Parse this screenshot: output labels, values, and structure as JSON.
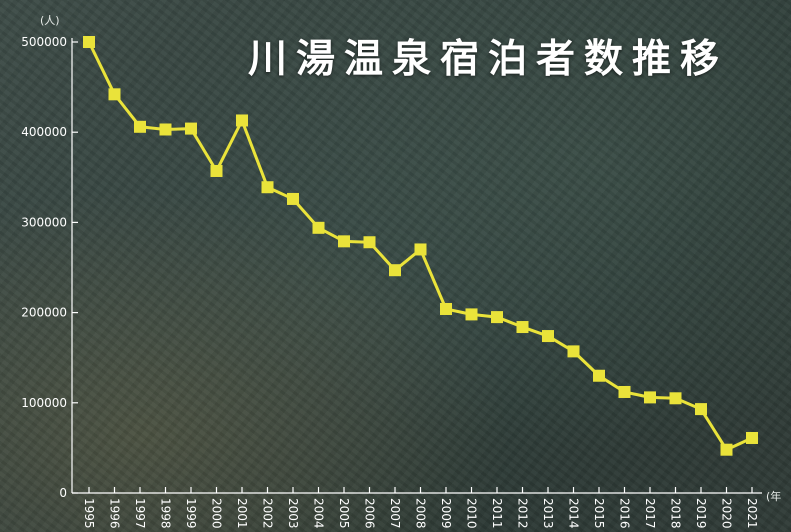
{
  "chart_data": {
    "type": "line",
    "title": "川湯温泉宿泊者数推移",
    "y_unit": "(人)",
    "x_unit": "(年",
    "x": [
      "1995",
      "1996",
      "1997",
      "1998",
      "1999",
      "2000",
      "2001",
      "2002",
      "2003",
      "2004",
      "2005",
      "2006",
      "2007",
      "2008",
      "2009",
      "2010",
      "2011",
      "2012",
      "2013",
      "2014",
      "2015",
      "2016",
      "2017",
      "2018",
      "2019",
      "2020",
      "2021"
    ],
    "series": [
      {
        "values": [
          500000,
          442000,
          406000,
          403000,
          404000,
          357000,
          413000,
          339000,
          326000,
          294000,
          279000,
          278000,
          247000,
          270000,
          204000,
          198000,
          195000,
          184000,
          174000,
          157000,
          130000,
          112000,
          106000,
          105000,
          93000,
          48000,
          61000
        ]
      }
    ],
    "y_ticks": [
      0,
      100000,
      200000,
      300000,
      400000,
      500000
    ],
    "y_tick_labels": [
      "0",
      "100000",
      "200000",
      "300000",
      "400000",
      "500000"
    ],
    "ylim": [
      0,
      510000
    ],
    "grid": false,
    "colors": {
      "line": "#eae33a",
      "marker": "#eae33a",
      "axis": "#ffffff"
    }
  }
}
